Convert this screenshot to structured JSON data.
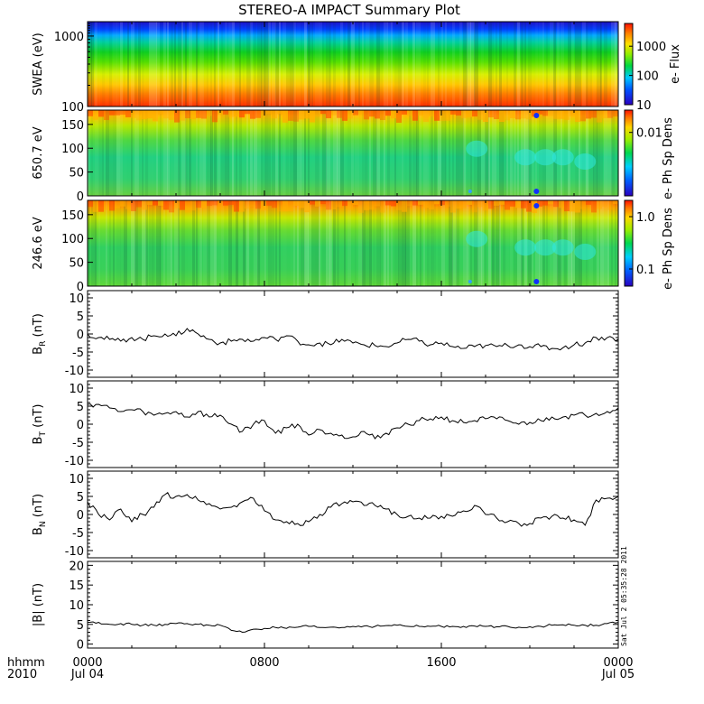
{
  "title": "STEREO-A IMPACT Summary Plot",
  "time_axis": {
    "left_labels": [
      "hhmm",
      "2010"
    ],
    "ticks": [
      {
        "hhmm": "0000",
        "date": "Jul 04",
        "hours": 0
      },
      {
        "hhmm": "0800",
        "date": "",
        "hours": 8
      },
      {
        "hhmm": "1600",
        "date": "",
        "hours": 16
      },
      {
        "hhmm": "0000",
        "date": "Jul 05",
        "hours": 24
      }
    ],
    "range_hours": [
      0,
      24
    ]
  },
  "timestamp": "Sat Jul  2 05:35:28 2011",
  "chart_data": [
    {
      "type": "heatmap",
      "ylabel": "SWEA (eV)",
      "yscale": "log",
      "ylim": [
        100,
        1600
      ],
      "yticks": [
        "1000",
        "100"
      ],
      "colorbar": {
        "label": "e- Flux",
        "scale": "log",
        "range": [
          10,
          6000
        ],
        "ticks": [
          "1000",
          "100",
          "10"
        ]
      },
      "colors": [
        "#ff2000",
        "#ff8a00",
        "#ffd700",
        "#a8f000",
        "#10d818",
        "#00c8d8",
        "#0050ff",
        "#1a10c8"
      ]
    },
    {
      "type": "heatmap",
      "ylabel": "650.7 eV",
      "ylim": [
        0,
        180
      ],
      "yticks": [
        "150",
        "100",
        "50",
        "0"
      ],
      "colorbar": {
        "label": "e- Ph Sp Dens",
        "scale": "log",
        "ticks": [
          "0.01"
        ]
      }
    },
    {
      "type": "heatmap",
      "ylabel": "246.6 eV",
      "ylim": [
        0,
        180
      ],
      "yticks": [
        "150",
        "100",
        "50",
        "0"
      ],
      "colorbar": {
        "label": "e- Ph Sp Dens",
        "scale": "log",
        "ticks": [
          "1.0",
          "0.1"
        ]
      }
    },
    {
      "type": "line",
      "ylabel": "B",
      "ylabel_sub": "R",
      "ylabel_unit": "(nT)",
      "ylim": [
        -12,
        12
      ],
      "yticks": [
        "10",
        "5",
        "0",
        "-5",
        "-10"
      ],
      "x": [
        0,
        0.5,
        1,
        1.5,
        2,
        2.5,
        3,
        3.5,
        4,
        4.5,
        5,
        5.5,
        6,
        6.5,
        7,
        7.5,
        8,
        8.5,
        9,
        9.5,
        10,
        10.5,
        11,
        11.5,
        12,
        12.5,
        13,
        13.5,
        14,
        14.5,
        15,
        15.5,
        16,
        16.5,
        17,
        17.5,
        18,
        18.5,
        19,
        19.5,
        20,
        20.5,
        21,
        21.5,
        22,
        22.5,
        23,
        23.5,
        24
      ],
      "y": [
        0,
        -1,
        -1.5,
        -2,
        -1,
        -1.5,
        -0.5,
        0,
        -0.5,
        1.5,
        0,
        -1.5,
        -2.5,
        -2,
        -1.5,
        -2,
        -1,
        -1.5,
        -0.5,
        -2,
        -3,
        -2.5,
        -3,
        -1.5,
        -2.5,
        -3,
        -3.2,
        -3.5,
        -2.5,
        -1.5,
        -2,
        -3,
        -2.5,
        -3.5,
        -4,
        -3.5,
        -3.2,
        -3.5,
        -3.2,
        -3,
        -3.5,
        -3.5,
        -4,
        -3.8,
        -3,
        -2.5,
        -1,
        -1,
        -1.5
      ]
    },
    {
      "type": "line",
      "ylabel": "B",
      "ylabel_sub": "T",
      "ylabel_unit": "(nT)",
      "ylim": [
        -12,
        12
      ],
      "yticks": [
        "10",
        "5",
        "0",
        "-5",
        "-10"
      ],
      "x": [
        0,
        0.5,
        1,
        1.5,
        2,
        2.5,
        3,
        3.5,
        4,
        4.5,
        5,
        5.5,
        6,
        6.5,
        7,
        7.5,
        8,
        8.5,
        9,
        9.5,
        10,
        10.5,
        11,
        11.5,
        12,
        12.5,
        13,
        13.5,
        14,
        14.5,
        15,
        15.5,
        16,
        16.5,
        17,
        17.5,
        18,
        18.5,
        19,
        19.5,
        20,
        20.5,
        21,
        21.5,
        22,
        22.5,
        23,
        23.5,
        24
      ],
      "y": [
        5.5,
        5.5,
        4.5,
        3.5,
        4,
        3.5,
        2.5,
        3,
        3.5,
        2,
        3.5,
        2,
        2.5,
        0,
        -2,
        0,
        1,
        -2.5,
        -1,
        0,
        -3,
        -1.5,
        -2.5,
        -3,
        -3.5,
        -2,
        -4,
        -2.5,
        -1,
        0,
        1,
        1.5,
        2,
        1,
        0.5,
        1,
        1.5,
        1.5,
        1,
        0,
        0.5,
        1,
        2,
        2,
        2.5,
        2.5,
        3,
        3.5,
        4.5
      ]
    },
    {
      "type": "line",
      "ylabel": "B",
      "ylabel_sub": "N",
      "ylabel_unit": "(nT)",
      "ylim": [
        -12,
        12
      ],
      "yticks": [
        "10",
        "5",
        "0",
        "-5",
        "-10"
      ],
      "x": [
        0,
        0.5,
        1,
        1.5,
        2,
        2.5,
        3,
        3.5,
        4,
        4.5,
        5,
        5.5,
        6,
        6.5,
        7,
        7.5,
        8,
        8.5,
        9,
        9.5,
        10,
        10.5,
        11,
        11.5,
        12,
        12.5,
        13,
        13.5,
        14,
        14.5,
        15,
        15.5,
        16,
        16.5,
        17,
        17.5,
        18,
        18.5,
        19,
        19.5,
        20,
        20.5,
        21,
        21.5,
        22,
        22.5,
        23,
        23.5,
        24
      ],
      "y": [
        3.5,
        0,
        -1.5,
        1.5,
        -2,
        0,
        2,
        5.5,
        5,
        5.5,
        4,
        3,
        1.5,
        2,
        3.5,
        4.5,
        1,
        -1.5,
        -2,
        -2.5,
        -2,
        0,
        2,
        3,
        3.5,
        2.5,
        2.5,
        1.5,
        0,
        -0.5,
        -1,
        -1,
        -0.5,
        -0.5,
        1,
        2.5,
        0,
        -1,
        -2,
        -2.5,
        -2.5,
        -1,
        -0.5,
        -1,
        -1.5,
        -3,
        4,
        4.5,
        5
      ]
    },
    {
      "type": "line",
      "ylabel": "|B|",
      "ylabel_unit": "(nT)",
      "ylim": [
        -1,
        21
      ],
      "yticks": [
        "20",
        "15",
        "10",
        "5",
        "0"
      ],
      "x": [
        0,
        0.5,
        1,
        1.5,
        2,
        2.5,
        3,
        3.5,
        4,
        4.5,
        5,
        5.5,
        6,
        6.5,
        7,
        7.5,
        8,
        8.5,
        9,
        9.5,
        10,
        10.5,
        11,
        11.5,
        12,
        12.5,
        13,
        13.5,
        14,
        14.5,
        15,
        15.5,
        16,
        16.5,
        17,
        17.5,
        18,
        18.5,
        19,
        19.5,
        20,
        20.5,
        21,
        21.5,
        22,
        22.5,
        23,
        23.5,
        24
      ],
      "y": [
        5.5,
        5.5,
        5,
        5.2,
        5,
        4.8,
        4.8,
        5,
        5.2,
        5.2,
        5,
        4.8,
        4.8,
        3.5,
        3,
        3.8,
        4,
        4.2,
        4,
        4.3,
        4.5,
        4.2,
        4.3,
        4.2,
        4.5,
        4.6,
        4.5,
        4.7,
        4.8,
        4.5,
        4.5,
        4.5,
        4.5,
        4.5,
        4.5,
        4.6,
        4.5,
        4.4,
        4.5,
        4.3,
        4.4,
        4.5,
        4.8,
        4.9,
        4.8,
        4.8,
        4.8,
        5.2,
        5.5
      ]
    }
  ]
}
